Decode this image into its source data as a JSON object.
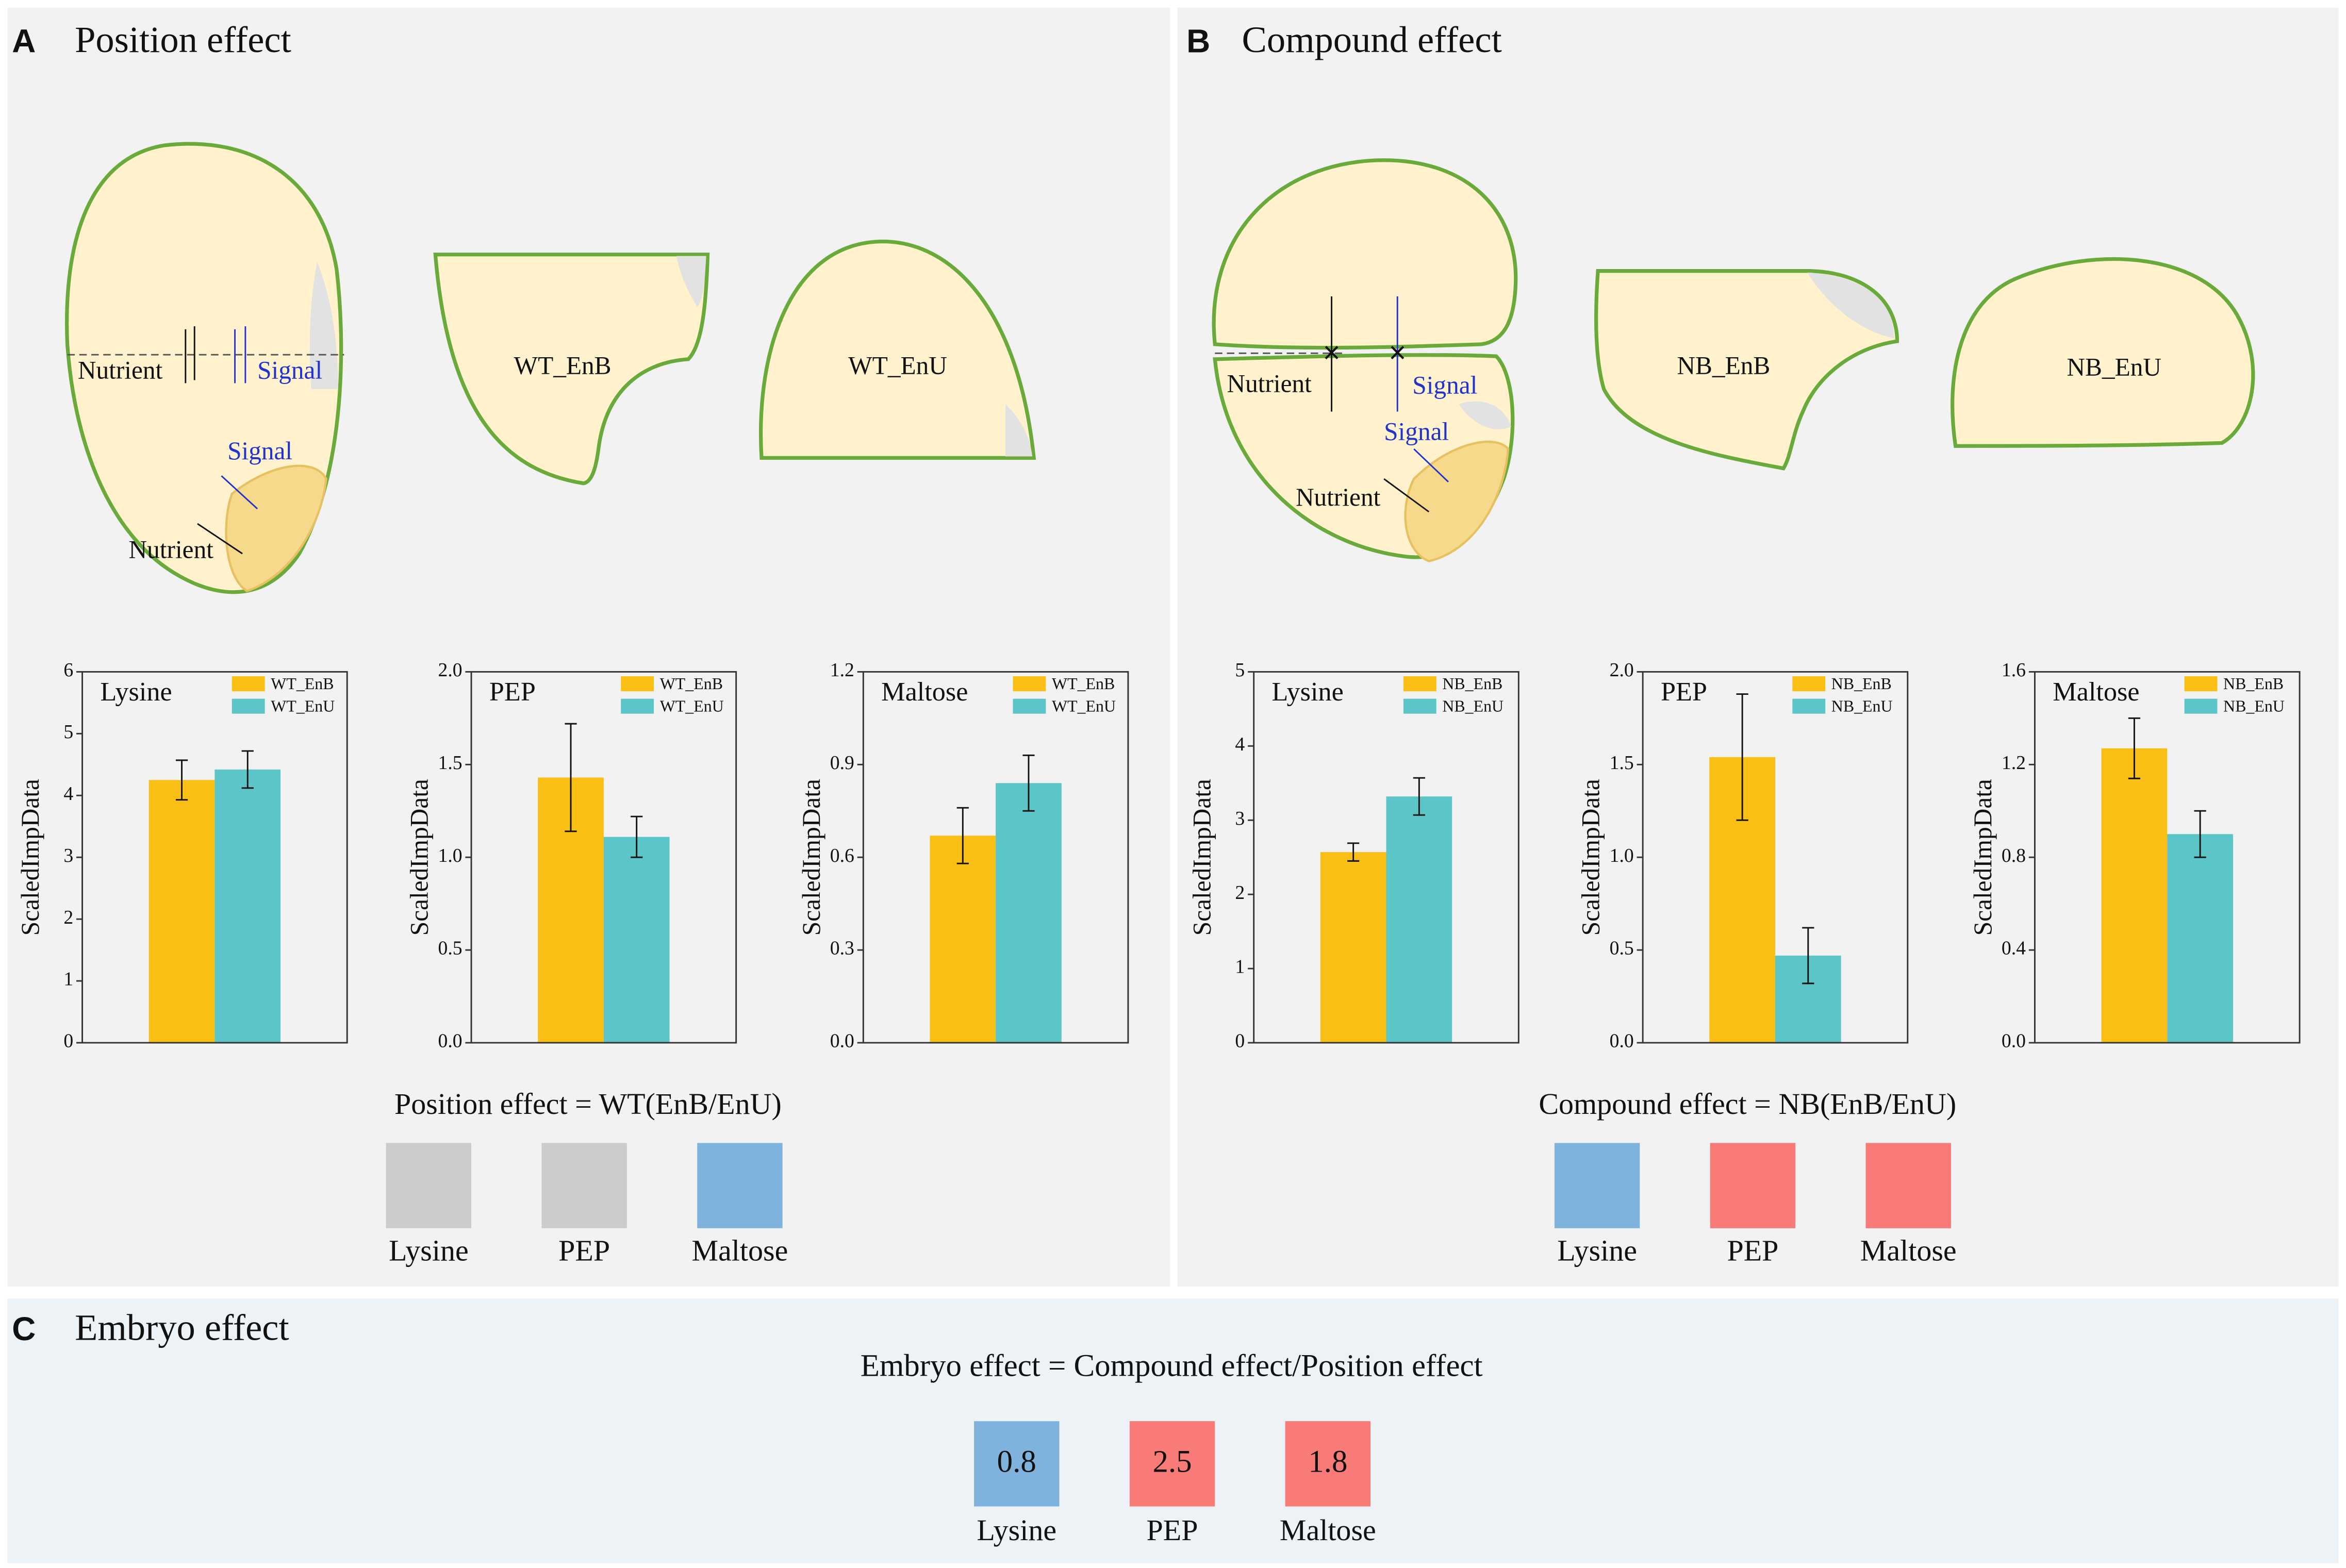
{
  "panels": [
    {
      "label": "A",
      "title": "Position effect",
      "diagram": {
        "nutrient_top": "Nutrient",
        "signal_top": "Signal",
        "signal_bottom": "Signal",
        "nutrient_bottom": "Nutrient",
        "part_b": "WT_EnB",
        "part_u": "WT_EnU"
      },
      "formula": "Position effect = WT(EnB/EnU)",
      "boxes": [
        {
          "name": "Lysine",
          "color": "#cccccc"
        },
        {
          "name": "PEP",
          "color": "#cccccc"
        },
        {
          "name": "Maltose",
          "color": "#7fb3de"
        }
      ]
    },
    {
      "label": "B",
      "title": "Compound effect",
      "diagram": {
        "nutrient_top": "Nutrient",
        "signal_top": "Signal",
        "signal_bottom": "Signal",
        "nutrient_bottom": "Nutrient",
        "part_b": "NB_EnB",
        "part_u": "NB_EnU"
      },
      "formula": "Compound effect = NB(EnB/EnU)",
      "boxes": [
        {
          "name": "Lysine",
          "color": "#7fb3de"
        },
        {
          "name": "PEP",
          "color": "#f97b78"
        },
        {
          "name": "Maltose",
          "color": "#f97b78"
        }
      ]
    },
    {
      "label": "C",
      "title": "Embryo effect",
      "formula": "Embryo effect = Compound effect/Position effect",
      "boxes": [
        {
          "name": "Lysine",
          "color": "#7fb3de",
          "value": 0.8
        },
        {
          "name": "PEP",
          "color": "#f97b78",
          "value": 2.5
        },
        {
          "name": "Maltose",
          "color": "#f97b78",
          "value": 1.8
        }
      ]
    }
  ],
  "chart_data": [
    {
      "type": "bar",
      "title": "Lysine",
      "ylabel": "ScaledImpData",
      "categories": [
        null
      ],
      "ylim": [
        0,
        6
      ],
      "yticks": [
        0,
        1,
        2,
        3,
        4,
        5,
        6
      ],
      "series": [
        {
          "name": "WT_EnB",
          "color": "#f9bf14",
          "values": [
            4.25
          ],
          "errors": [
            0.32
          ]
        },
        {
          "name": "WT_EnU",
          "color": "#5bc5c8",
          "values": [
            4.42
          ],
          "errors": [
            0.3
          ]
        }
      ]
    },
    {
      "type": "bar",
      "title": "PEP",
      "ylabel": "ScaledImpData",
      "categories": [
        null
      ],
      "ylim": [
        0,
        2
      ],
      "yticks": [
        {
          "value": 0,
          "label": "0.0"
        },
        0.5,
        {
          "value": 1,
          "label": "1.0"
        },
        1.5,
        {
          "value": 2,
          "label": "2.0"
        }
      ],
      "series": [
        {
          "name": "WT_EnB",
          "color": "#f9bf14",
          "values": [
            1.43
          ],
          "errors": [
            0.29
          ]
        },
        {
          "name": "WT_EnU",
          "color": "#5bc5c8",
          "values": [
            1.11
          ],
          "errors": [
            0.11
          ]
        }
      ]
    },
    {
      "type": "bar",
      "title": "Maltose",
      "ylabel": "ScaledImpData",
      "categories": [
        null
      ],
      "ylim": [
        0,
        1.2
      ],
      "yticks": [
        {
          "value": 0,
          "label": "0.0"
        },
        0.3,
        0.6,
        0.9,
        1.2
      ],
      "series": [
        {
          "name": "WT_EnB",
          "color": "#f9bf14",
          "values": [
            0.67
          ],
          "errors": [
            0.09
          ]
        },
        {
          "name": "WT_EnU",
          "color": "#5bc5c8",
          "values": [
            0.84
          ],
          "errors": [
            0.09
          ]
        }
      ]
    },
    {
      "type": "bar",
      "title": "Lysine",
      "ylabel": "ScaledImpData",
      "categories": [
        null
      ],
      "ylim": [
        0,
        5
      ],
      "yticks": [
        0,
        1,
        2,
        3,
        4,
        5
      ],
      "series": [
        {
          "name": "NB_EnB",
          "color": "#f9bf14",
          "values": [
            2.57
          ],
          "errors": [
            0.12
          ]
        },
        {
          "name": "NB_EnU",
          "color": "#5bc5c8",
          "values": [
            3.32
          ],
          "errors": [
            0.25
          ]
        }
      ]
    },
    {
      "type": "bar",
      "title": "PEP",
      "ylabel": "ScaledImpData",
      "categories": [
        null
      ],
      "ylim": [
        0,
        2
      ],
      "yticks": [
        {
          "value": 0,
          "label": "0.0"
        },
        0.5,
        {
          "value": 1,
          "label": "1.0"
        },
        1.5,
        {
          "value": 2,
          "label": "2.0"
        }
      ],
      "series": [
        {
          "name": "NB_EnB",
          "color": "#f9bf14",
          "values": [
            1.54
          ],
          "errors": [
            0.34
          ]
        },
        {
          "name": "NB_EnU",
          "color": "#5bc5c8",
          "values": [
            0.47
          ],
          "errors": [
            0.15
          ]
        }
      ]
    },
    {
      "type": "bar",
      "title": "Maltose",
      "ylabel": "ScaledImpData",
      "categories": [
        null
      ],
      "ylim": [
        0,
        1.6
      ],
      "yticks": [
        {
          "value": 0,
          "label": "0.0"
        },
        0.4,
        0.8,
        1.2,
        1.6
      ],
      "series": [
        {
          "name": "NB_EnB",
          "color": "#f9bf14",
          "values": [
            1.27
          ],
          "errors": [
            0.13
          ]
        },
        {
          "name": "NB_EnU",
          "color": "#5bc5c8",
          "values": [
            0.9
          ],
          "errors": [
            0.1
          ]
        }
      ]
    }
  ]
}
